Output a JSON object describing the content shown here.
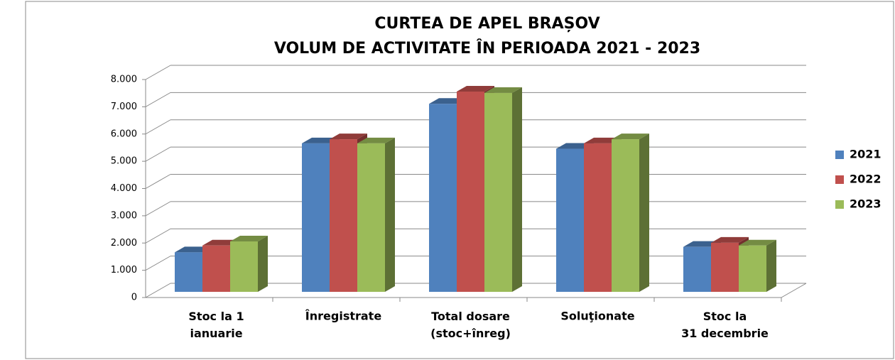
{
  "chart_data": {
    "type": "bar3d",
    "title": "CURTEA DE APEL BRAȘOV",
    "subtitle": "VOLUM DE ACTIVITATE ÎN PERIOADA 2021  - 2023",
    "categories": [
      "Stoc la 1\nianuarie",
      "Înregistrate",
      "Total dosare\n(stoc+înreg)",
      "Soluţionate",
      "Stoc la\n31 decembrie"
    ],
    "series": [
      {
        "name": "2021",
        "color": "#4f81bd",
        "values": [
          1450,
          5450,
          6900,
          5250,
          1650
        ]
      },
      {
        "name": "2022",
        "color": "#c0504d",
        "values": [
          1700,
          5600,
          7350,
          5450,
          1800
        ]
      },
      {
        "name": "2023",
        "color": "#9bbb59",
        "values": [
          1850,
          5450,
          7300,
          5600,
          1700
        ]
      }
    ],
    "ylim": [
      0,
      8000
    ],
    "yticks": [
      0,
      {
        "value": 1000,
        "label": "1.000"
      },
      {
        "value": 2000,
        "label": "2.000"
      },
      {
        "value": 3000,
        "label": "3.000"
      },
      {
        "value": 4000,
        "label": "4.000"
      },
      {
        "value": 5000,
        "label": "5.000"
      },
      {
        "value": 6000,
        "label": "6.000"
      },
      {
        "value": 7000,
        "label": "7.000"
      },
      {
        "value": 8000,
        "label": "8.000"
      }
    ],
    "grid": true,
    "legend": "right"
  }
}
